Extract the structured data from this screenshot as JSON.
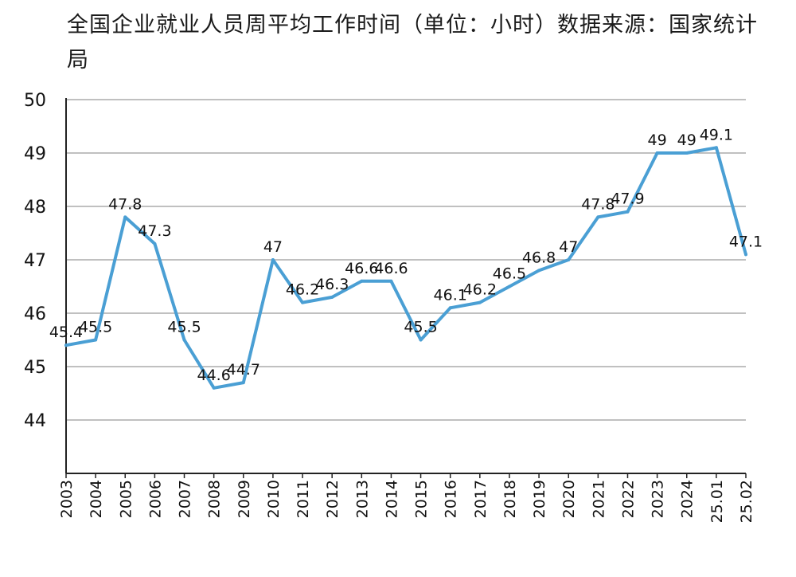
{
  "chart_data": {
    "type": "line",
    "title": "全国企业就业人员周平均工作时间（单位：小时）数据来源：国家统计局",
    "xlabel": "",
    "ylabel": "",
    "categories": [
      "2003",
      "2004",
      "2005",
      "2006",
      "2007",
      "2008",
      "2009",
      "2010",
      "2011",
      "2012",
      "2013",
      "2014",
      "2015",
      "2016",
      "2017",
      "2018",
      "2019",
      "2020",
      "2021",
      "2022",
      "2023",
      "2024",
      "25.01",
      "25.02"
    ],
    "series": [
      {
        "values": [
          45.4,
          45.5,
          47.8,
          47.3,
          45.5,
          44.6,
          44.7,
          47,
          46.2,
          46.3,
          46.6,
          46.6,
          45.5,
          46.1,
          46.2,
          46.5,
          46.8,
          47,
          47.8,
          47.9,
          49,
          49,
          49.1,
          47.1
        ],
        "labels": [
          "45.4",
          "45.5",
          "47.8",
          "47.3",
          "45.5",
          "44.6",
          "44.7",
          "47",
          "46.2",
          "46.3",
          "46.6",
          "46.6",
          "45.5",
          "46.1",
          "46.2",
          "46.5",
          "46.8",
          "47",
          "47.8",
          "47.9",
          "49",
          "49",
          "49.1",
          "47.1"
        ]
      }
    ],
    "ylim": [
      43,
      50
    ],
    "yticks": [
      "44",
      "45",
      "46",
      "47",
      "48",
      "49",
      "50"
    ],
    "grid": true,
    "line_color": "#4a9fd4"
  }
}
